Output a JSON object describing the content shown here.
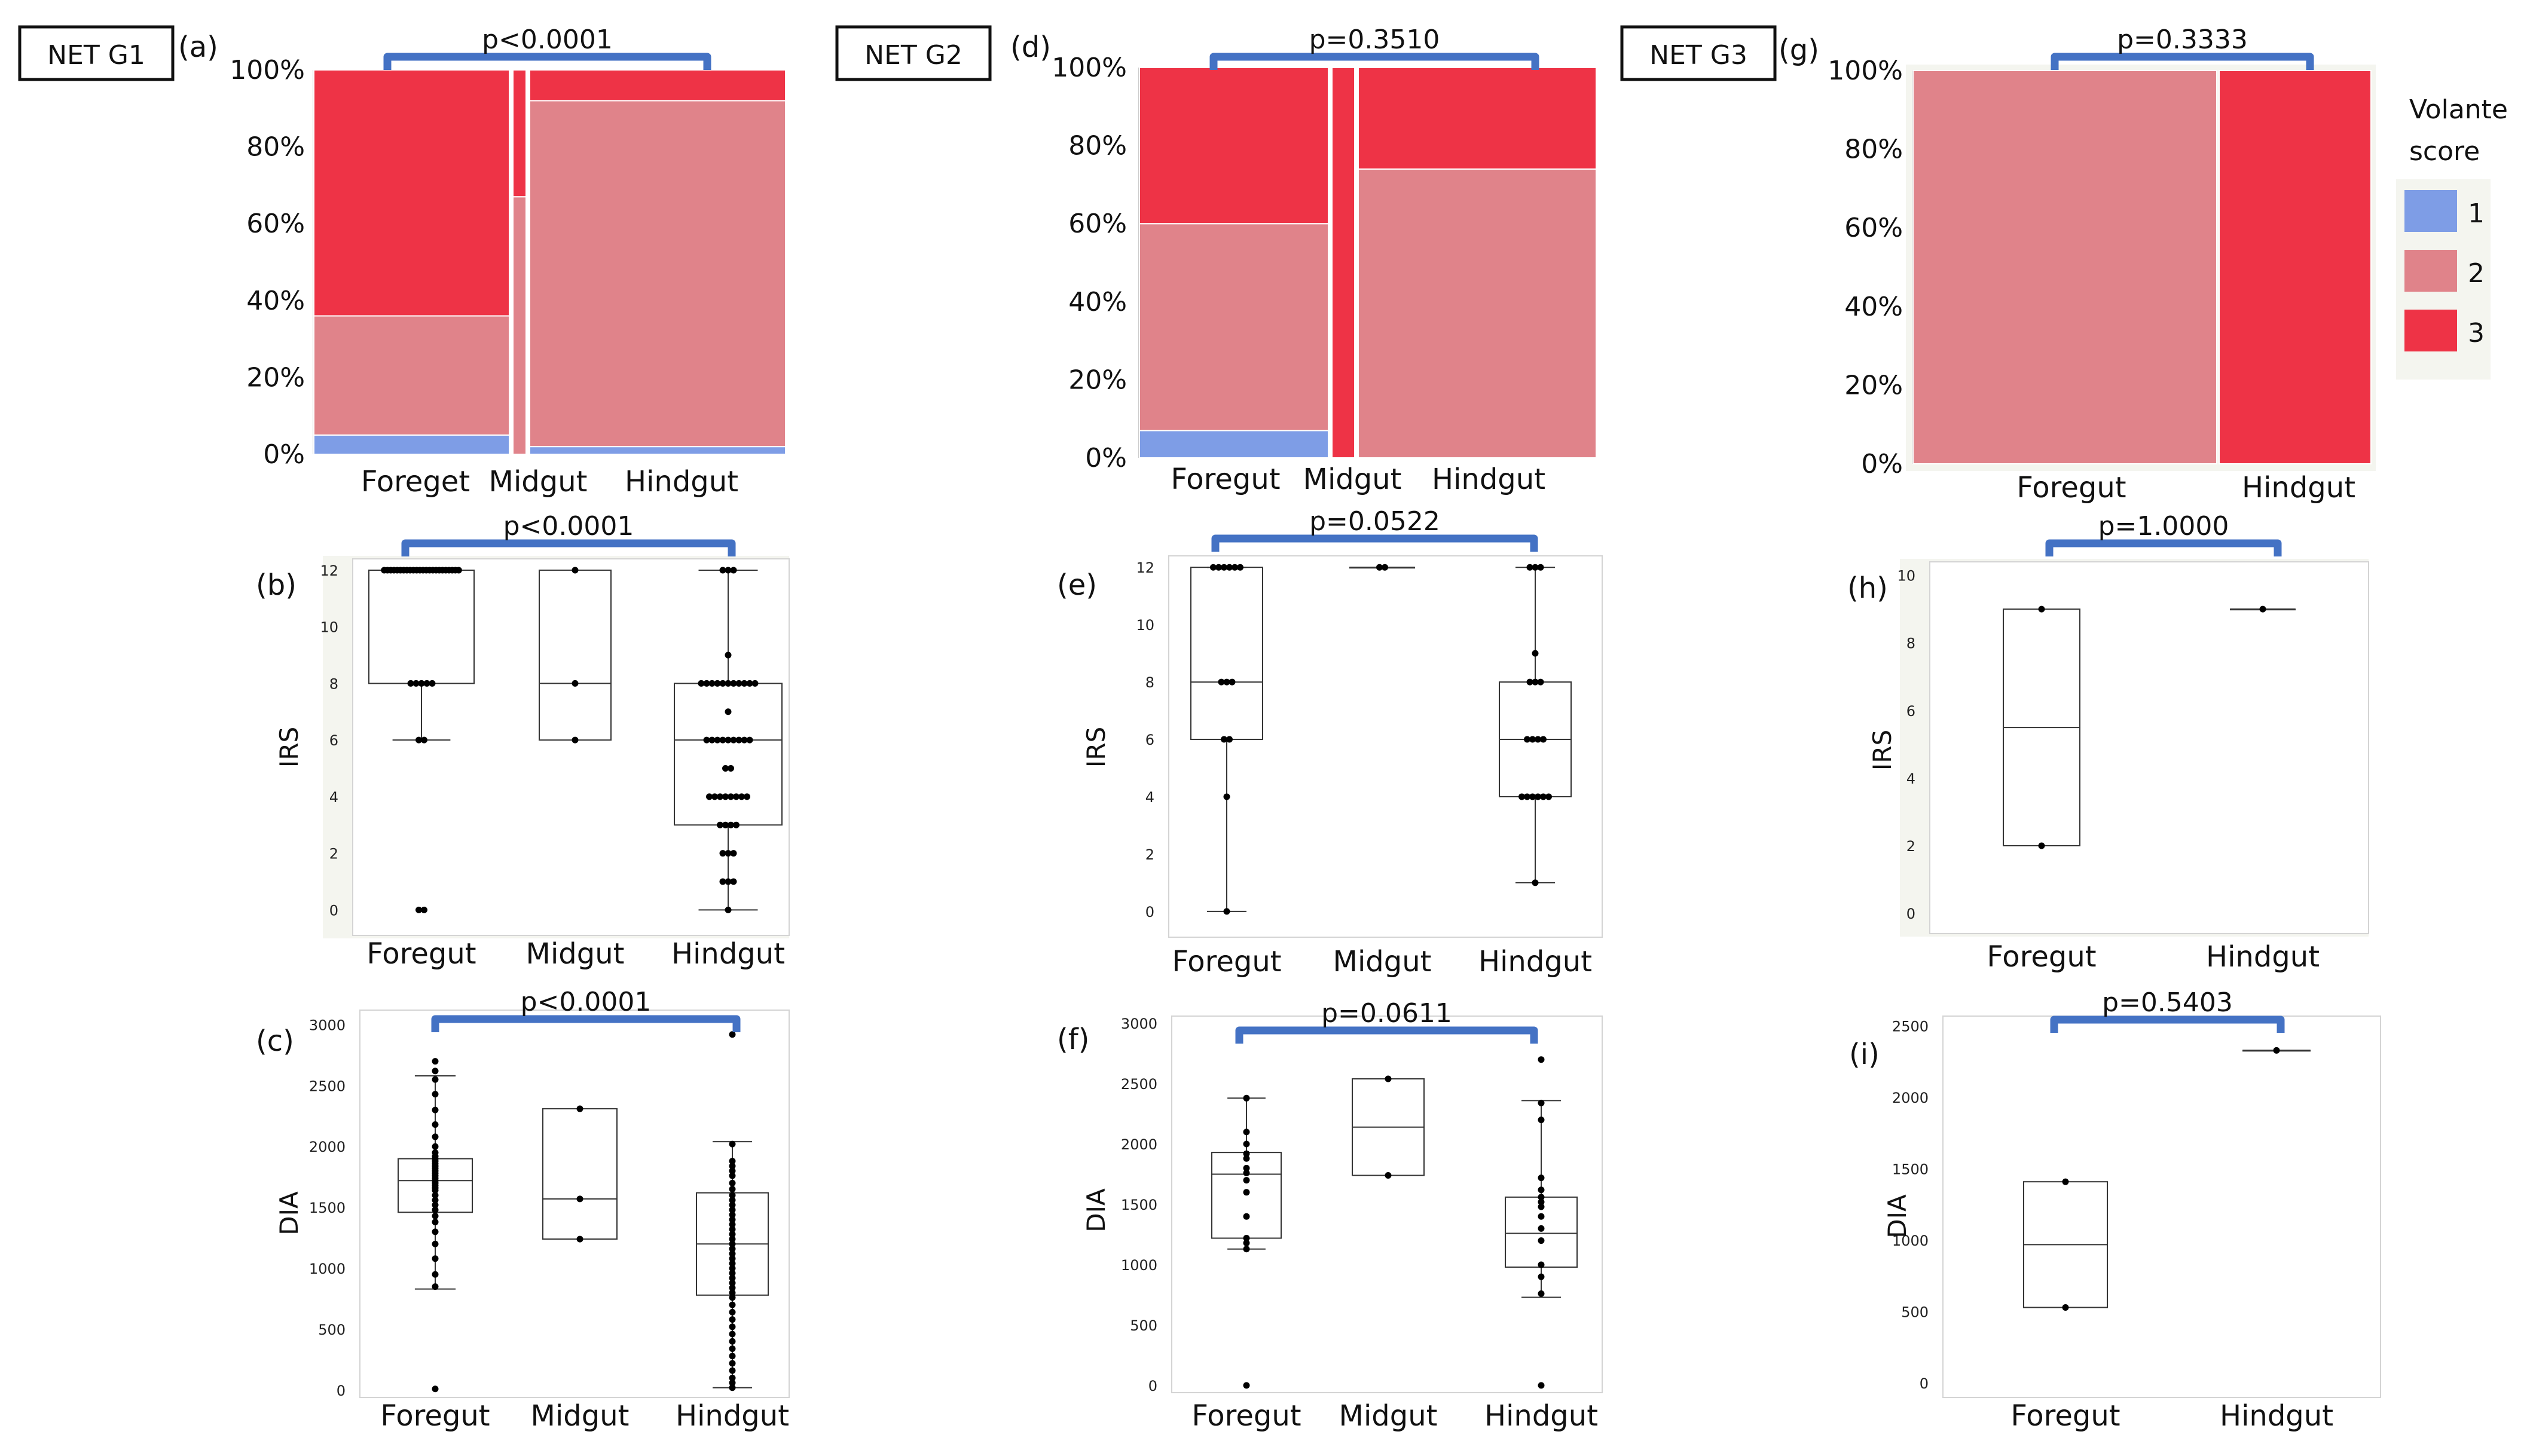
{
  "colors": {
    "score1": "#7e9de6",
    "score2": "#e0838a",
    "score3": "#ee3346",
    "bracket": "#4472c4"
  },
  "legend": {
    "title_line1": "Volante",
    "title_line2": "score",
    "items": [
      {
        "label": "1",
        "color": "#7e9de6"
      },
      {
        "label": "2",
        "color": "#e0838a"
      },
      {
        "label": "3",
        "color": "#ee3346"
      }
    ]
  },
  "chart_data": [
    {
      "id": "a",
      "panel_label": "(a)",
      "group_label": "NET G1",
      "type": "mosaic",
      "categories": [
        "Foreget",
        "Midgut",
        "Hindgut"
      ],
      "ticks": [
        "0%",
        "20%",
        "40%",
        "60%",
        "80%",
        "100%"
      ],
      "pvalue": "p<0.0001",
      "series": [
        {
          "name": "1",
          "values": [
            5,
            0,
            2
          ]
        },
        {
          "name": "2",
          "values": [
            31,
            67,
            90
          ]
        },
        {
          "name": "3",
          "values": [
            64,
            33,
            8
          ]
        }
      ]
    },
    {
      "id": "d",
      "panel_label": "(d)",
      "group_label": "NET G2",
      "type": "mosaic",
      "categories": [
        "Foregut",
        "Midgut",
        "Hindgut"
      ],
      "ticks": [
        "0%",
        "20%",
        "40%",
        "60%",
        "80%",
        "100%"
      ],
      "pvalue": "p=0.3510",
      "series": [
        {
          "name": "1",
          "values": [
            7,
            0,
            0
          ]
        },
        {
          "name": "2",
          "values": [
            53,
            0,
            74
          ]
        },
        {
          "name": "3",
          "values": [
            40,
            100,
            26
          ]
        }
      ]
    },
    {
      "id": "g",
      "panel_label": "(g)",
      "group_label": "NET G3",
      "type": "mosaic",
      "categories": [
        "Foregut",
        "Hindgut"
      ],
      "ticks": [
        "0%",
        "20%",
        "40%",
        "60%",
        "80%",
        "100%"
      ],
      "pvalue": "p=0.3333",
      "series": [
        {
          "name": "1",
          "values": [
            0,
            0
          ]
        },
        {
          "name": "2",
          "values": [
            100,
            0
          ]
        },
        {
          "name": "3",
          "values": [
            0,
            100
          ]
        }
      ]
    },
    {
      "id": "b",
      "panel_label": "(b)",
      "type": "box",
      "ylabel": "IRS",
      "categories": [
        "Foregut",
        "Midgut",
        "Hindgut"
      ],
      "ylim": [
        0,
        12
      ],
      "ticks": [
        "0",
        "2",
        "4",
        "6",
        "8",
        "10",
        "12"
      ],
      "pvalue": "p<0.0001",
      "boxes": [
        {
          "min": 6,
          "q1": 8,
          "median": 12,
          "q3": 12,
          "max": 12,
          "points": [
            12,
            12,
            12,
            12,
            12,
            12,
            12,
            12,
            12,
            12,
            12,
            12,
            12,
            12,
            12,
            12,
            12,
            12,
            12,
            12,
            12,
            12,
            12,
            12,
            8,
            8,
            8,
            8,
            8,
            6,
            6,
            0,
            0
          ]
        },
        {
          "q1": 6,
          "median": 8,
          "q3": 12,
          "points": [
            12,
            8,
            6
          ]
        },
        {
          "min": 0,
          "q1": 3,
          "median": 6,
          "q3": 8,
          "max": 12,
          "points": [
            12,
            12,
            12,
            9,
            8,
            8,
            8,
            8,
            8,
            8,
            8,
            8,
            8,
            8,
            8,
            7,
            6,
            6,
            6,
            6,
            6,
            6,
            6,
            6,
            6,
            5,
            5,
            4,
            4,
            4,
            4,
            4,
            4,
            4,
            4,
            3,
            3,
            3,
            3,
            2,
            2,
            2,
            1,
            1,
            1,
            0
          ]
        }
      ]
    },
    {
      "id": "e",
      "panel_label": "(e)",
      "type": "box",
      "ylabel": "IRS",
      "categories": [
        "Foregut",
        "Midgut",
        "Hindgut"
      ],
      "ylim": [
        0,
        12
      ],
      "ticks": [
        "0",
        "2",
        "4",
        "6",
        "8",
        "10",
        "12"
      ],
      "pvalue": "p=0.0522",
      "boxes": [
        {
          "min": 0,
          "q1": 6,
          "median": 8,
          "q3": 12,
          "max": 12,
          "points": [
            12,
            12,
            12,
            12,
            12,
            12,
            8,
            8,
            8,
            6,
            6,
            4,
            0
          ]
        },
        {
          "q1": 12,
          "median": 12,
          "q3": 12,
          "points": [
            12,
            12
          ]
        },
        {
          "min": 1,
          "q1": 4,
          "median": 6,
          "q3": 8,
          "max": 12,
          "points": [
            12,
            12,
            12,
            9,
            8,
            8,
            8,
            6,
            6,
            6,
            6,
            4,
            4,
            4,
            4,
            4,
            4,
            1
          ]
        }
      ]
    },
    {
      "id": "h",
      "panel_label": "(h)",
      "type": "box",
      "ylabel": "IRS",
      "categories": [
        "Foregut",
        "Hindgut"
      ],
      "ylim": [
        0,
        10
      ],
      "ticks": [
        "0",
        "2",
        "4",
        "6",
        "8",
        "10"
      ],
      "pvalue": "p=1.0000",
      "boxes": [
        {
          "q1": 2,
          "median": 5.5,
          "q3": 9,
          "points": [
            9,
            2
          ]
        },
        {
          "q1": 9,
          "median": 9,
          "q3": 9,
          "points": [
            9
          ]
        }
      ]
    },
    {
      "id": "c",
      "panel_label": "(c)",
      "type": "box",
      "ylabel": "DIA",
      "categories": [
        "Foregut",
        "Midgut",
        "Hindgut"
      ],
      "ylim": [
        0,
        3000
      ],
      "ticks": [
        "0",
        "500",
        "1000",
        "1500",
        "2000",
        "2500",
        "3000"
      ],
      "pvalue": "p<0.0001",
      "boxes": [
        {
          "min": 830,
          "q1": 1460,
          "median": 1720,
          "q3": 1900,
          "max": 2580,
          "points": [
            2700,
            2620,
            2550,
            2430,
            2300,
            2180,
            2080,
            2000,
            1950,
            1920,
            1900,
            1880,
            1860,
            1840,
            1820,
            1800,
            1780,
            1760,
            1740,
            1720,
            1700,
            1680,
            1660,
            1640,
            1600,
            1560,
            1520,
            1480,
            1430,
            1380,
            1300,
            1200,
            1080,
            950,
            850,
            10
          ]
        },
        {
          "q1": 1240,
          "median": 1570,
          "q3": 2310,
          "points": [
            2310,
            1570,
            1240
          ]
        },
        {
          "min": 20,
          "q1": 780,
          "median": 1200,
          "q3": 1620,
          "max": 2040,
          "points": [
            2920,
            2020,
            1880,
            1840,
            1800,
            1760,
            1700,
            1650,
            1600,
            1560,
            1520,
            1480,
            1440,
            1400,
            1360,
            1320,
            1280,
            1240,
            1200,
            1160,
            1120,
            1080,
            1040,
            1000,
            960,
            920,
            880,
            840,
            800,
            760,
            700,
            640,
            580,
            520,
            460,
            400,
            340,
            280,
            220,
            160,
            100,
            60,
            20
          ]
        }
      ]
    },
    {
      "id": "f",
      "panel_label": "(f)",
      "type": "box",
      "ylabel": "DIA",
      "categories": [
        "Foregut",
        "Midgut",
        "Hindgut"
      ],
      "ylim": [
        0,
        3000
      ],
      "ticks": [
        "0",
        "500",
        "1000",
        "1500",
        "2000",
        "2500",
        "3000"
      ],
      "pvalue": "p=0.0611",
      "boxes": [
        {
          "min": 1130,
          "q1": 1220,
          "median": 1750,
          "q3": 1930,
          "max": 2380,
          "points": [
            2380,
            2100,
            2000,
            1920,
            1880,
            1800,
            1760,
            1700,
            1600,
            1400,
            1220,
            1180,
            1130,
            0
          ]
        },
        {
          "q1": 1740,
          "median": 2140,
          "q3": 2540,
          "points": [
            2540,
            1740
          ]
        },
        {
          "min": 730,
          "q1": 980,
          "median": 1260,
          "q3": 1560,
          "max": 2360,
          "points": [
            2700,
            2340,
            2200,
            1720,
            1620,
            1560,
            1520,
            1480,
            1400,
            1300,
            1200,
            1000,
            900,
            760,
            0
          ]
        }
      ]
    },
    {
      "id": "i",
      "panel_label": "(i)",
      "type": "box",
      "ylabel": "DIA",
      "categories": [
        "Foregut",
        "Hindgut"
      ],
      "ylim": [
        0,
        2500
      ],
      "ticks": [
        "0",
        "500",
        "1000",
        "1500",
        "2000",
        "2500"
      ],
      "pvalue": "p=0.5403",
      "boxes": [
        {
          "q1": 530,
          "median": 970,
          "q3": 1410,
          "points": [
            1410,
            530
          ]
        },
        {
          "q1": 2330,
          "median": 2330,
          "q3": 2330,
          "points": [
            2330
          ]
        }
      ]
    }
  ]
}
